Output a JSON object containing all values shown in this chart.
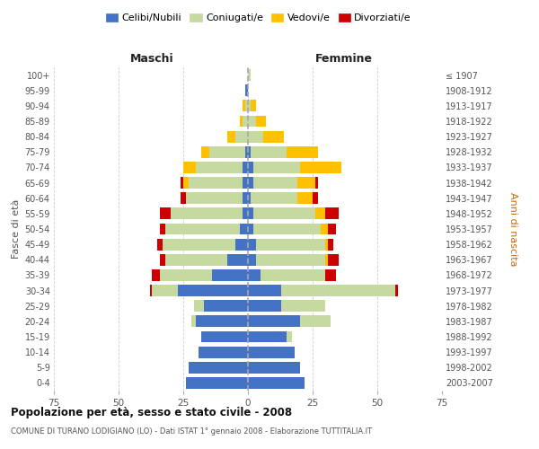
{
  "age_groups": [
    "0-4",
    "5-9",
    "10-14",
    "15-19",
    "20-24",
    "25-29",
    "30-34",
    "35-39",
    "40-44",
    "45-49",
    "50-54",
    "55-59",
    "60-64",
    "65-69",
    "70-74",
    "75-79",
    "80-84",
    "85-89",
    "90-94",
    "95-99",
    "100+"
  ],
  "birth_years": [
    "2003-2007",
    "1998-2002",
    "1993-1997",
    "1988-1992",
    "1983-1987",
    "1978-1982",
    "1973-1977",
    "1968-1972",
    "1963-1967",
    "1958-1962",
    "1953-1957",
    "1948-1952",
    "1943-1947",
    "1938-1942",
    "1933-1937",
    "1928-1932",
    "1923-1927",
    "1918-1922",
    "1913-1917",
    "1908-1912",
    "≤ 1907"
  ],
  "male": {
    "celibe": [
      24,
      23,
      19,
      18,
      20,
      17,
      27,
      14,
      8,
      5,
      3,
      2,
      2,
      2,
      2,
      1,
      0,
      0,
      0,
      1,
      0
    ],
    "coniugato": [
      0,
      0,
      0,
      0,
      2,
      4,
      10,
      20,
      24,
      28,
      29,
      28,
      22,
      21,
      18,
      14,
      5,
      2,
      1,
      0,
      0
    ],
    "vedovo": [
      0,
      0,
      0,
      0,
      0,
      0,
      0,
      0,
      0,
      0,
      0,
      0,
      0,
      2,
      5,
      3,
      3,
      1,
      1,
      0,
      0
    ],
    "divorziato": [
      0,
      0,
      0,
      0,
      0,
      0,
      1,
      3,
      2,
      2,
      2,
      4,
      2,
      1,
      0,
      0,
      0,
      0,
      0,
      0,
      0
    ]
  },
  "female": {
    "nubile": [
      22,
      20,
      18,
      15,
      20,
      13,
      13,
      5,
      3,
      3,
      2,
      2,
      1,
      2,
      2,
      1,
      0,
      0,
      0,
      0,
      0
    ],
    "coniugata": [
      0,
      0,
      0,
      2,
      12,
      17,
      44,
      25,
      27,
      27,
      26,
      24,
      18,
      17,
      18,
      14,
      6,
      3,
      1,
      0,
      1
    ],
    "vedova": [
      0,
      0,
      0,
      0,
      0,
      0,
      0,
      0,
      1,
      1,
      3,
      4,
      6,
      7,
      16,
      12,
      8,
      4,
      2,
      0,
      0
    ],
    "divorziata": [
      0,
      0,
      0,
      0,
      0,
      0,
      1,
      4,
      4,
      2,
      3,
      5,
      2,
      1,
      0,
      0,
      0,
      0,
      0,
      0,
      0
    ]
  },
  "colors": {
    "celibe_nubile": "#4472c4",
    "coniugato_a": "#c5d9a0",
    "vedovo_a": "#ffc000",
    "divorziato_a": "#cc0000"
  },
  "title": "Popolazione per età, sesso e stato civile - 2008",
  "subtitle": "COMUNE DI TURANO LODIGIANO (LO) - Dati ISTAT 1° gennaio 2008 - Elaborazione TUTTITALIA.IT",
  "xlabel_left": "Maschi",
  "xlabel_right": "Femmine",
  "ylabel_left": "Fasce di età",
  "ylabel_right": "Anni di nascita",
  "xlim": 75,
  "legend_labels": [
    "Celibi/Nubili",
    "Coniugati/e",
    "Vedovi/e",
    "Divorziati/e"
  ],
  "background_color": "#ffffff",
  "grid_color": "#cccccc"
}
